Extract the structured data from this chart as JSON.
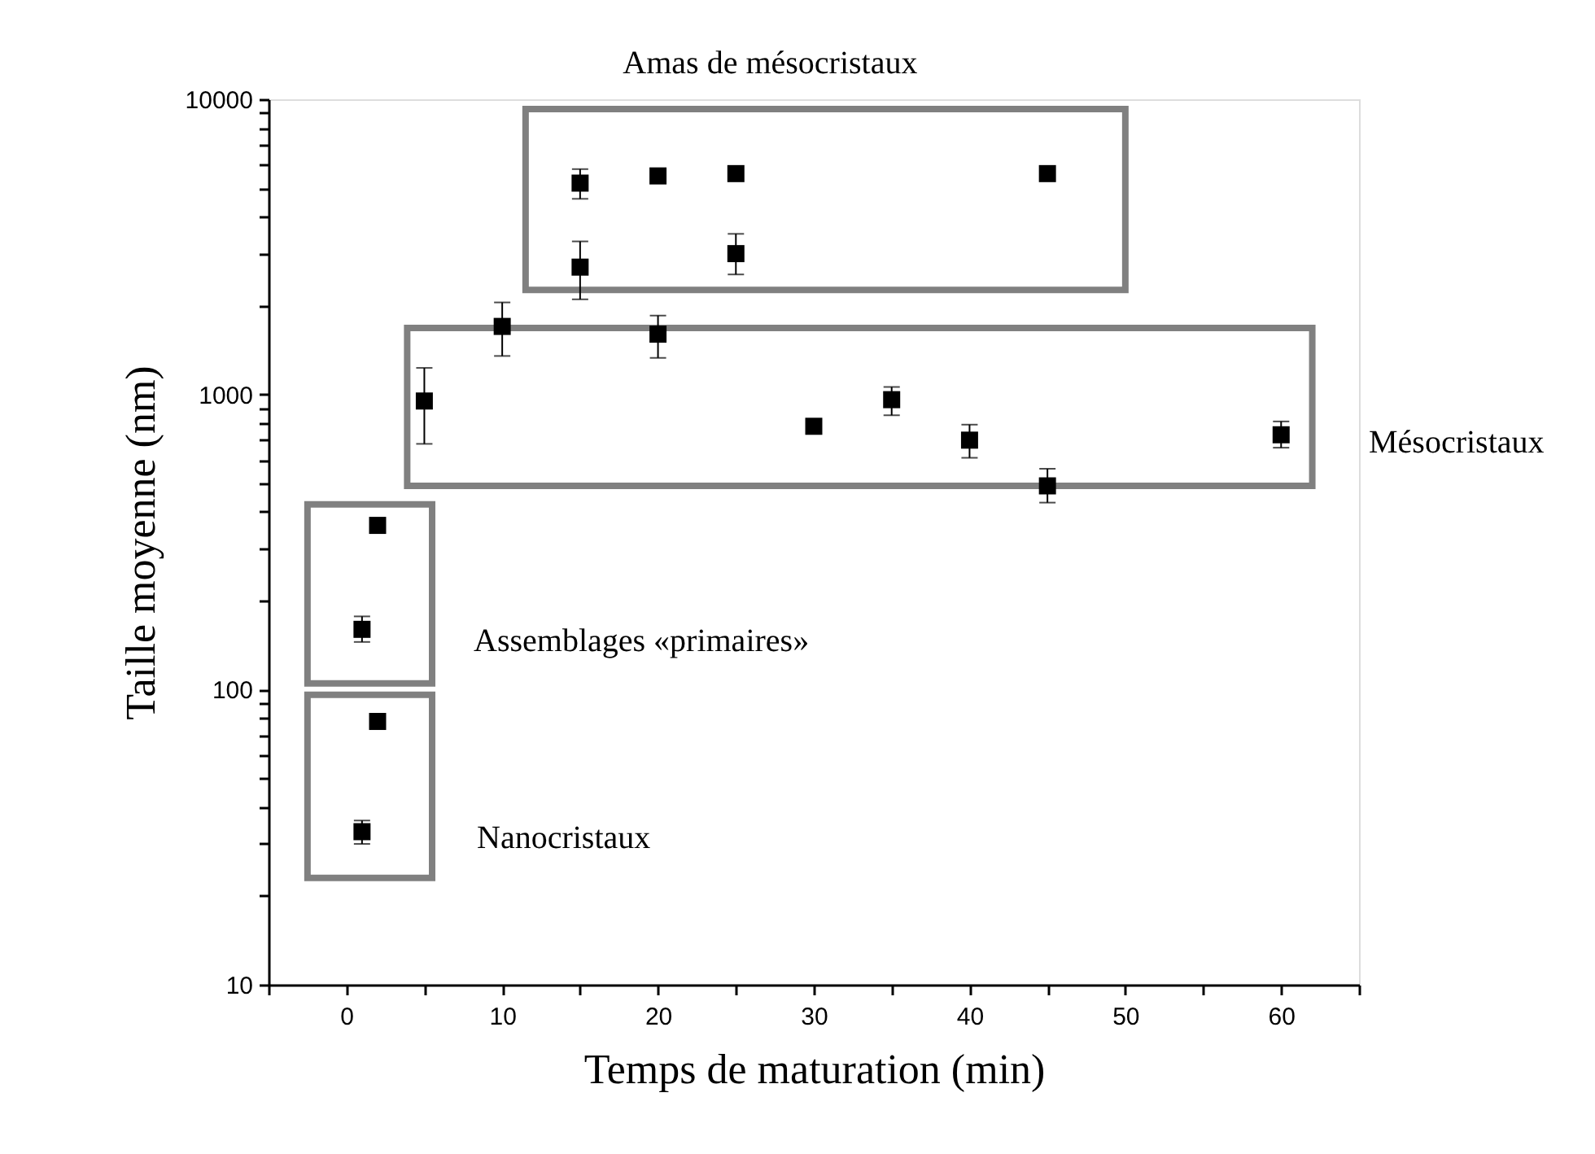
{
  "chart_data": {
    "type": "scatter",
    "xlabel": "Temps de maturation (min)",
    "ylabel": "Taille moyenne (nm)",
    "x": [
      1,
      2,
      1,
      2,
      5,
      10,
      15,
      15,
      20,
      20,
      25,
      25,
      30,
      35,
      40,
      45,
      45,
      60
    ],
    "series": [
      {
        "color": "#000000",
        "values": [
          33,
          78,
          160,
          360,
          950,
          1700,
          5200,
          2700,
          5500,
          1600,
          5600,
          3000,
          780,
          960,
          700,
          5600,
          490,
          730
        ],
        "errors": [
          [
            30,
            36
          ],
          null,
          [
            145,
            177
          ],
          null,
          [
            680,
            1230
          ],
          [
            1350,
            2050
          ],
          [
            4600,
            5800
          ],
          [
            2100,
            3300
          ],
          null,
          [
            1330,
            1850
          ],
          null,
          [
            2550,
            3500
          ],
          null,
          [
            850,
            1060
          ],
          [
            610,
            790
          ],
          null,
          [
            430,
            560
          ],
          [
            660,
            810
          ]
        ]
      }
    ],
    "marker": "square",
    "log": "y",
    "xlim": [
      -5,
      65
    ],
    "xticks": [
      {
        "value": -5,
        "label": null
      },
      0,
      {
        "value": 5,
        "label": null
      },
      10,
      {
        "value": 15,
        "label": null
      },
      20,
      {
        "value": 25,
        "label": null
      },
      30,
      {
        "value": 35,
        "label": null
      },
      40,
      {
        "value": 45,
        "label": null
      },
      50,
      {
        "value": 55,
        "label": null
      },
      60,
      {
        "value": 65,
        "label": null
      }
    ],
    "ylim": [
      10,
      10000
    ],
    "yticks": [
      10,
      {
        "value": 20,
        "label": null
      },
      {
        "value": 30,
        "label": null
      },
      {
        "value": 40,
        "label": null
      },
      {
        "value": 50,
        "label": null
      },
      {
        "value": 60,
        "label": null
      },
      {
        "value": 70,
        "label": null
      },
      {
        "value": 80,
        "label": null
      },
      {
        "value": 90,
        "label": null
      },
      100,
      {
        "value": 200,
        "label": null
      },
      {
        "value": 300,
        "label": null
      },
      {
        "value": 400,
        "label": null
      },
      {
        "value": 500,
        "label": null
      },
      {
        "value": 600,
        "label": null
      },
      {
        "value": 700,
        "label": null
      },
      {
        "value": 800,
        "label": null
      },
      {
        "value": 900,
        "label": null
      },
      1000,
      {
        "value": 2000,
        "label": null
      },
      {
        "value": 3000,
        "label": null
      },
      {
        "value": 4000,
        "label": null
      },
      {
        "value": 5000,
        "label": null
      },
      {
        "value": 6000,
        "label": null
      },
      {
        "value": 7000,
        "label": null
      },
      {
        "value": 8000,
        "label": null
      },
      {
        "value": 9000,
        "label": null
      },
      10000
    ],
    "grid": false,
    "annotations": [
      "Amas de mésocristaux",
      "Mésocristaux",
      "Assemblages «primaires»",
      "Nanocristaux"
    ]
  }
}
